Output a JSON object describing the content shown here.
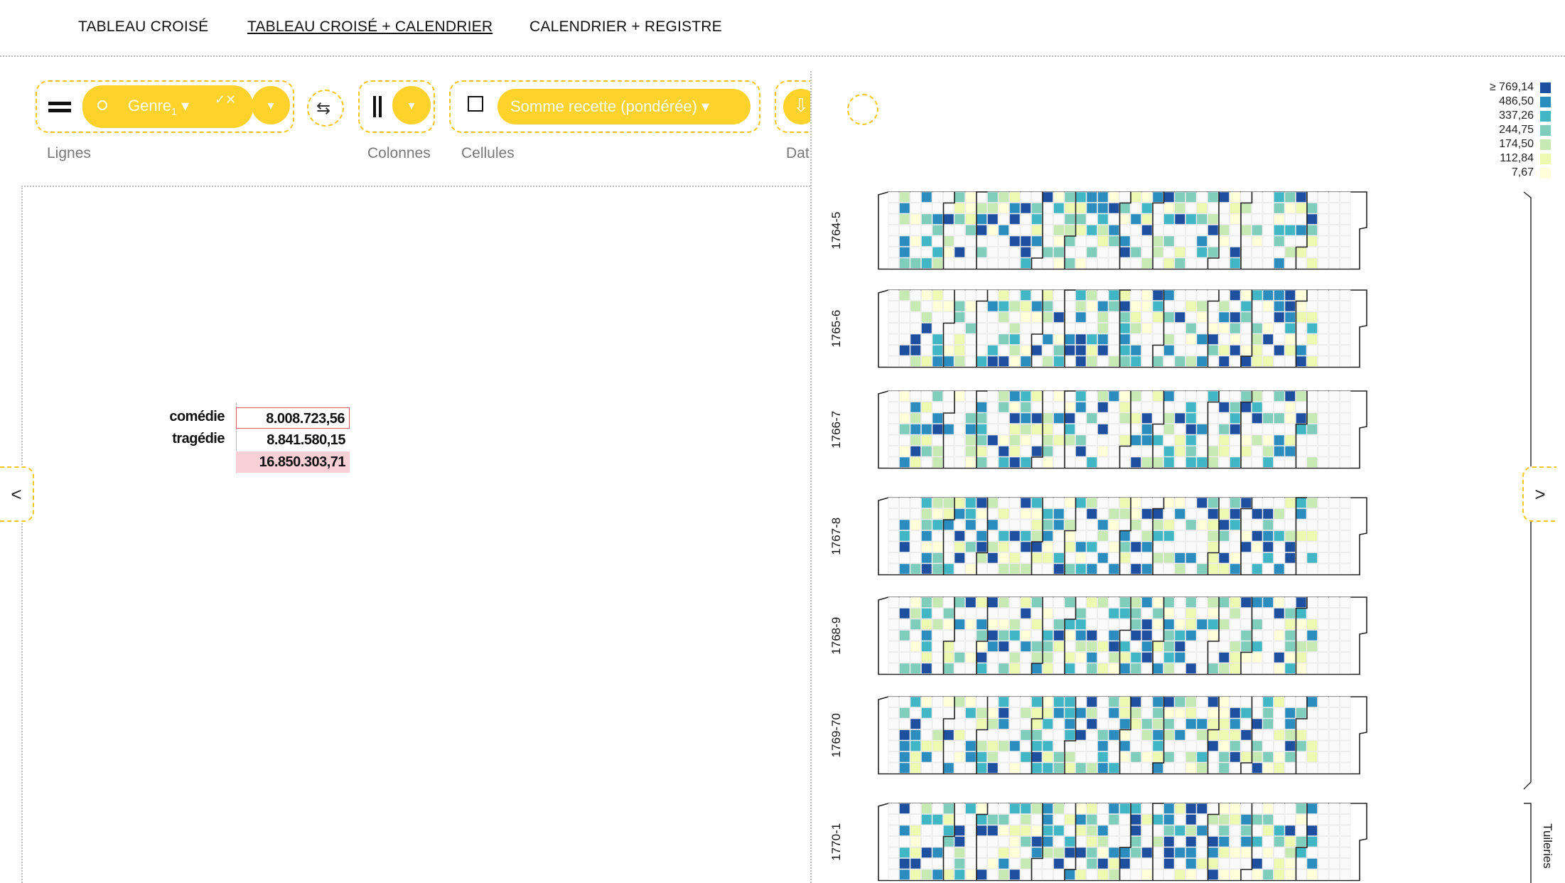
{
  "nav": {
    "tabs": [
      "TABLEAU CROISÉ",
      "TABLEAU CROISÉ + CALENDRIER",
      "CALENDRIER + REGISTRE"
    ],
    "active_index": 1
  },
  "toolbar": {
    "rows_icon": "equals-icon",
    "rows_pill": {
      "circle_icon": "circle-icon",
      "label": "Genre",
      "subscript": "1",
      "caret": "▾",
      "check_close": "✓✕"
    },
    "rows_dropdown": "▾",
    "swap_icon": "⇆",
    "columns_icon": "||",
    "columns_dropdown": "▾",
    "cells_checkbox_icon": "checkbox-icon",
    "cells_pill": {
      "label": "Somme recette (pondérée)",
      "caret": "▾"
    },
    "download_icon": "⇩",
    "labels": {
      "rows": "Lignes",
      "columns": "Colonnes",
      "cells": "Cellules",
      "data": "Dat"
    }
  },
  "pivot": {
    "rows": [
      {
        "label": "comédie",
        "value": "8.008.723,56"
      },
      {
        "label": "tragédie",
        "value": "8.841.580,15"
      }
    ],
    "total": "16.850.303,71"
  },
  "arrows": {
    "left": "<",
    "right": ">"
  },
  "legend": {
    "entries": [
      {
        "label": "≥ 769,14",
        "color": "#1f4f9f"
      },
      {
        "label": "486,50",
        "color": "#2b8cbe"
      },
      {
        "label": "337,26",
        "color": "#41b6c4"
      },
      {
        "label": "244,75",
        "color": "#7fcdbb"
      },
      {
        "label": "174,50",
        "color": "#c7e9b4"
      },
      {
        "label": "112,84",
        "color": "#edf8b1"
      },
      {
        "label": "7,67",
        "color": "#ffffd9"
      }
    ]
  },
  "calendar": {
    "seasons": [
      "1764-5",
      "1765-6",
      "1766-7",
      "1767-8",
      "1768-9",
      "1769-70",
      "1770-1"
    ],
    "venue_label": "Tuileries"
  }
}
